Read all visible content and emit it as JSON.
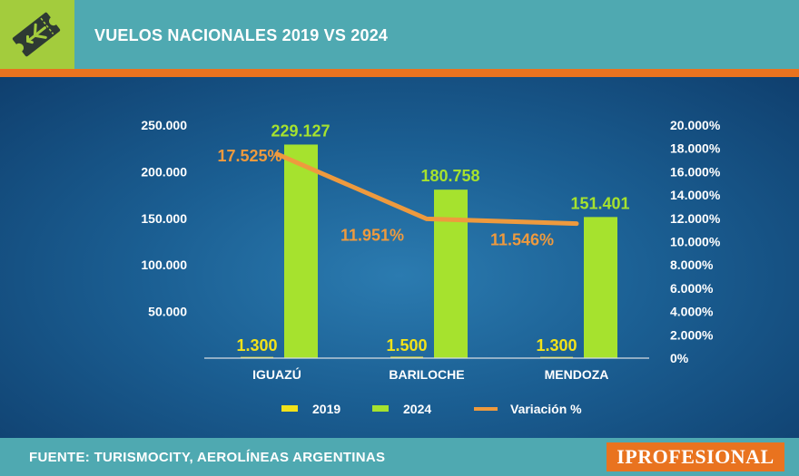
{
  "header": {
    "title": "VUELOS NACIONALES 2019 VS 2024",
    "icon": "airplane-ticket-icon"
  },
  "footer": {
    "source": "FUENTE: TURISMOCITY, AEROLÍNEAS ARGENTINAS",
    "brand": "IPROFESIONAL"
  },
  "colors": {
    "header_bg": "#4fa9b1",
    "accent_orange": "#e9731f",
    "bar_2019": "#f2e21a",
    "bar_2024": "#a6e22e",
    "line": "#ee9a3e",
    "icon_green": "#a3cc3d"
  },
  "chart_data": {
    "type": "bar",
    "title": "VUELOS NACIONALES 2019 VS 2024",
    "categories": [
      "IGUAZÚ",
      "BARILOCHE",
      "MENDOZA"
    ],
    "series": [
      {
        "name": "2019",
        "values": [
          1300,
          1500,
          1300
        ],
        "labels": [
          "1.300",
          "1.500",
          "1.300"
        ]
      },
      {
        "name": "2024",
        "values": [
          229127,
          180758,
          151401
        ],
        "labels": [
          "229.127",
          "180.758",
          "151.401"
        ]
      }
    ],
    "line_series": {
      "name": "Variación %",
      "values": [
        17525,
        11951,
        11546
      ],
      "labels": [
        "17.525%",
        "11.951%",
        "11.546%"
      ]
    },
    "ylim_left": [
      0,
      250000
    ],
    "ylim_right": [
      0,
      20000
    ],
    "yticks_left": [
      {
        "value": 50000,
        "label": "50.000"
      },
      {
        "value": 100000,
        "label": "100.000"
      },
      {
        "value": 150000,
        "label": "150.000"
      },
      {
        "value": 200000,
        "label": "200.000"
      },
      {
        "value": 250000,
        "label": "250.000"
      }
    ],
    "yticks_right": [
      {
        "value": 0,
        "label": "0%"
      },
      {
        "value": 2000,
        "label": "2.000%"
      },
      {
        "value": 4000,
        "label": "4.000%"
      },
      {
        "value": 6000,
        "label": "6.000%"
      },
      {
        "value": 8000,
        "label": "8.000%"
      },
      {
        "value": 10000,
        "label": "10.000%"
      },
      {
        "value": 12000,
        "label": "12.000%"
      },
      {
        "value": 14000,
        "label": "14.000%"
      },
      {
        "value": 16000,
        "label": "16.000%"
      },
      {
        "value": 18000,
        "label": "18.000%"
      },
      {
        "value": 20000,
        "label": "20.000%"
      }
    ],
    "legend": [
      {
        "name": "2019",
        "kind": "bar"
      },
      {
        "name": "2024",
        "kind": "bar"
      },
      {
        "name": "Variación %",
        "kind": "line"
      }
    ],
    "legend_position": "bottom",
    "grid": false
  }
}
